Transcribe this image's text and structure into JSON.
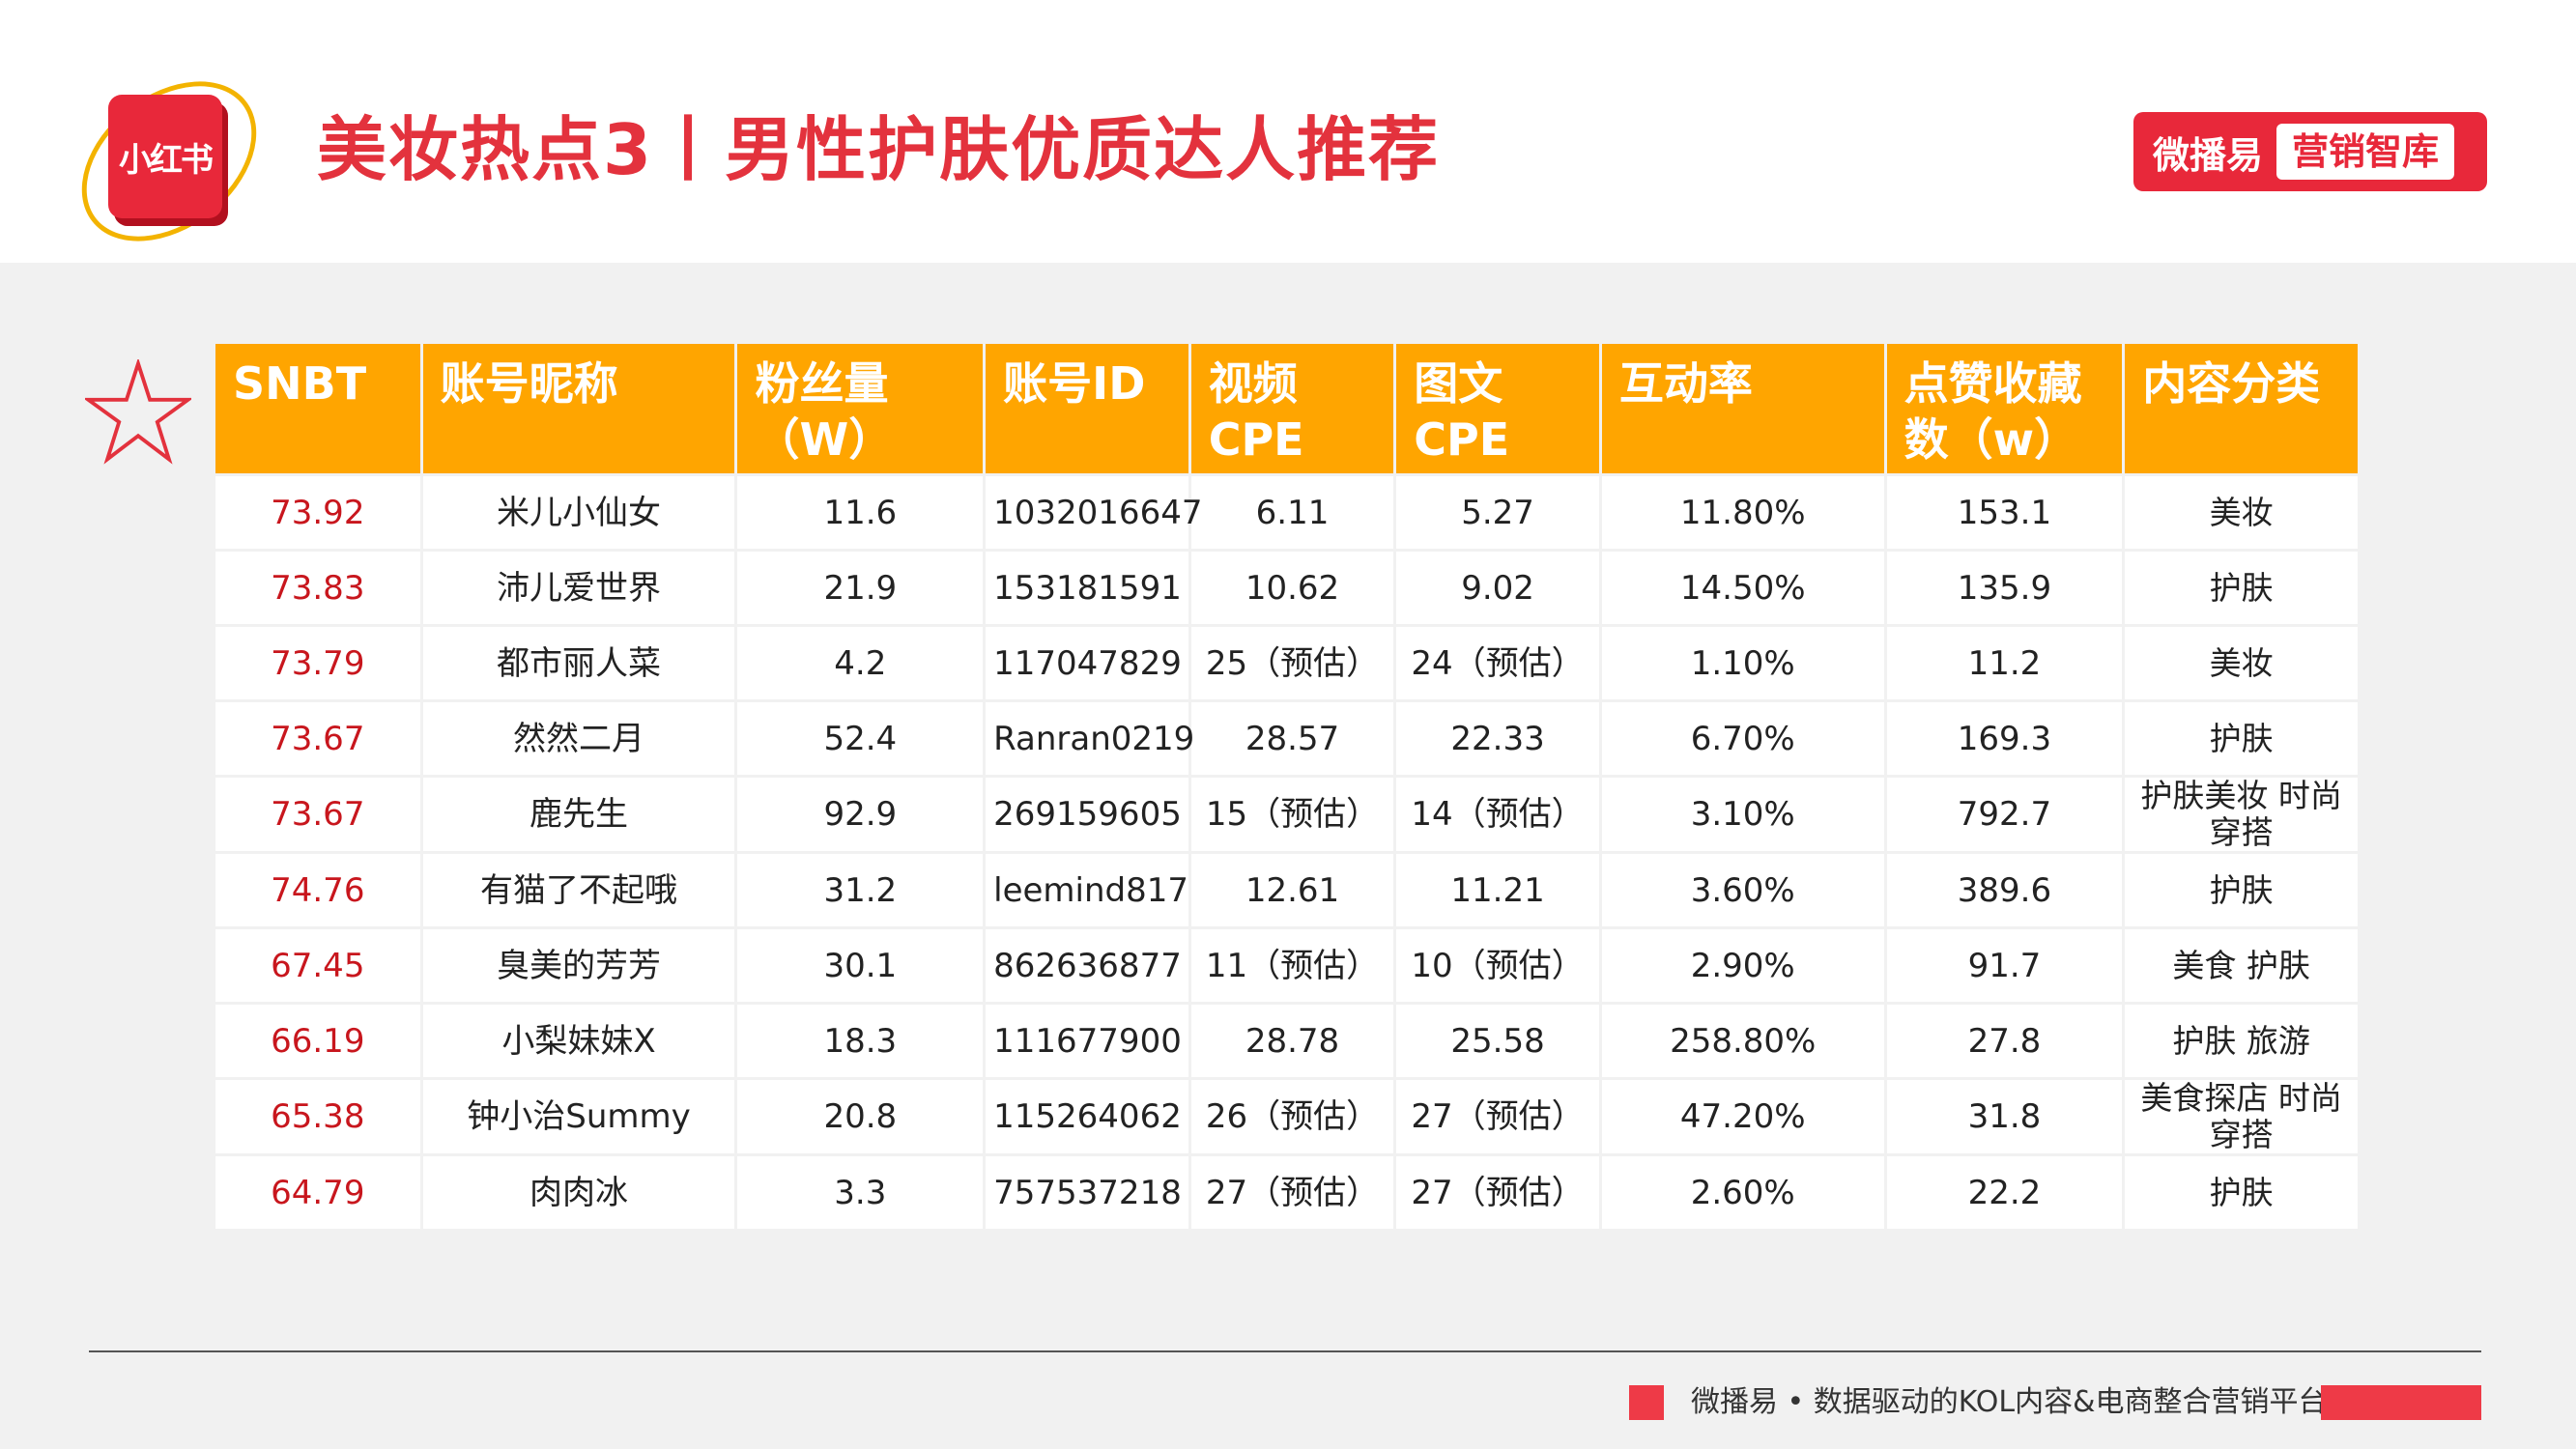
{
  "header": {
    "logo_text": "小红书",
    "title": "美妆热点3丨男性护肤优质达人推荐",
    "brand_name": "微播易",
    "brand_sub": "营销智库"
  },
  "colors": {
    "accent_red": "#e3323d",
    "header_orange": "#ffa500",
    "snbt_red": "#c8161d"
  },
  "table": {
    "columns": [
      "SNBT",
      "账号昵称",
      "粉丝量（W）",
      "账号ID",
      "视频 CPE",
      "图文 CPE",
      "互动率",
      "点赞收藏数（w）",
      "内容分类"
    ],
    "rows": [
      [
        "73.92",
        "米儿小仙女",
        "11.6",
        "1032016647",
        "6.11",
        "5.27",
        "11.80%",
        "153.1",
        "美妆"
      ],
      [
        "73.83",
        "沛儿爱世界",
        "21.9",
        "153181591",
        "10.62",
        "9.02",
        "14.50%",
        "135.9",
        "护肤"
      ],
      [
        "73.79",
        "都市丽人菜",
        "4.2",
        "117047829",
        "25（预估）",
        "24（预估）",
        "1.10%",
        "11.2",
        "美妆"
      ],
      [
        "73.67",
        "然然二月",
        "52.4",
        "Ranran0219",
        "28.57",
        "22.33",
        "6.70%",
        "169.3",
        "护肤"
      ],
      [
        "73.67",
        "鹿先生",
        "92.9",
        "269159605",
        "15（预估）",
        "14（预估）",
        "3.10%",
        "792.7",
        "护肤美妆 时尚穿搭"
      ],
      [
        "74.76",
        "有猫了不起哦",
        "31.2",
        "leemind817",
        "12.61",
        "11.21",
        "3.60%",
        "389.6",
        "护肤"
      ],
      [
        "67.45",
        "臭美的芳芳",
        "30.1",
        "862636877",
        "11（预估）",
        "10（预估）",
        "2.90%",
        "91.7",
        "美食 护肤"
      ],
      [
        "66.19",
        "小梨妹妹X",
        "18.3",
        "111677900",
        "28.78",
        "25.58",
        "258.80%",
        "27.8",
        "护肤 旅游"
      ],
      [
        "65.38",
        "钟小治Summy",
        "20.8",
        "115264062",
        "26（预估）",
        "27（预估）",
        "47.20%",
        "31.8",
        "美食探店 时尚穿搭"
      ],
      [
        "64.79",
        "肉肉冰",
        "3.3",
        "757537218",
        "27（预估）",
        "27（预估）",
        "2.60%",
        "22.2",
        "护肤"
      ]
    ]
  },
  "footer": {
    "text": "微播易 • 数据驱动的KOL内容&电商整合营销平台"
  }
}
